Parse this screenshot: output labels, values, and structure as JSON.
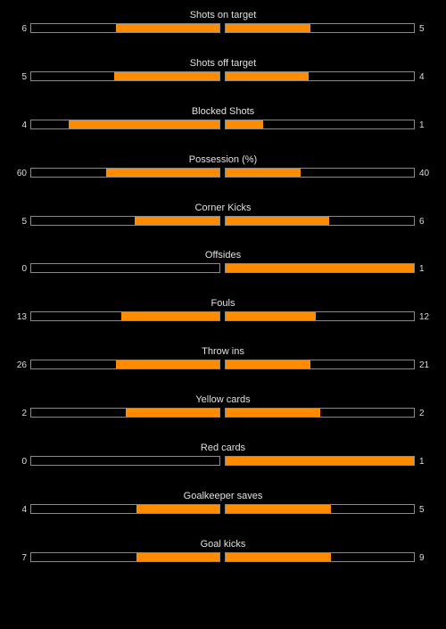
{
  "colors": {
    "background": "#000000",
    "fill": "#ff8c00",
    "border": "#8a8a8a",
    "text": "#e0e0e0"
  },
  "stats": [
    {
      "title": "Shots on target",
      "home": "6",
      "away": "5",
      "home_fill": 0.55,
      "away_fill": 0.45
    },
    {
      "title": "Shots off target",
      "home": "5",
      "away": "4",
      "home_fill": 0.56,
      "away_fill": 0.44
    },
    {
      "title": "Blocked Shots",
      "home": "4",
      "away": "1",
      "home_fill": 0.8,
      "away_fill": 0.2
    },
    {
      "title": "Possession (%)",
      "home": "60",
      "away": "40",
      "home_fill": 0.6,
      "away_fill": 0.4
    },
    {
      "title": "Corner Kicks",
      "home": "5",
      "away": "6",
      "home_fill": 0.45,
      "away_fill": 0.55
    },
    {
      "title": "Offsides",
      "home": "0",
      "away": "1",
      "home_fill": 0.0,
      "away_fill": 1.0
    },
    {
      "title": "Fouls",
      "home": "13",
      "away": "12",
      "home_fill": 0.52,
      "away_fill": 0.48
    },
    {
      "title": "Throw ins",
      "home": "26",
      "away": "21",
      "home_fill": 0.55,
      "away_fill": 0.45
    },
    {
      "title": "Yellow cards",
      "home": "2",
      "away": "2",
      "home_fill": 0.5,
      "away_fill": 0.5
    },
    {
      "title": "Red cards",
      "home": "0",
      "away": "1",
      "home_fill": 0.0,
      "away_fill": 1.0
    },
    {
      "title": "Goalkeeper saves",
      "home": "4",
      "away": "5",
      "home_fill": 0.44,
      "away_fill": 0.56
    },
    {
      "title": "Goal kicks",
      "home": "7",
      "away": "9",
      "home_fill": 0.44,
      "away_fill": 0.56
    }
  ]
}
